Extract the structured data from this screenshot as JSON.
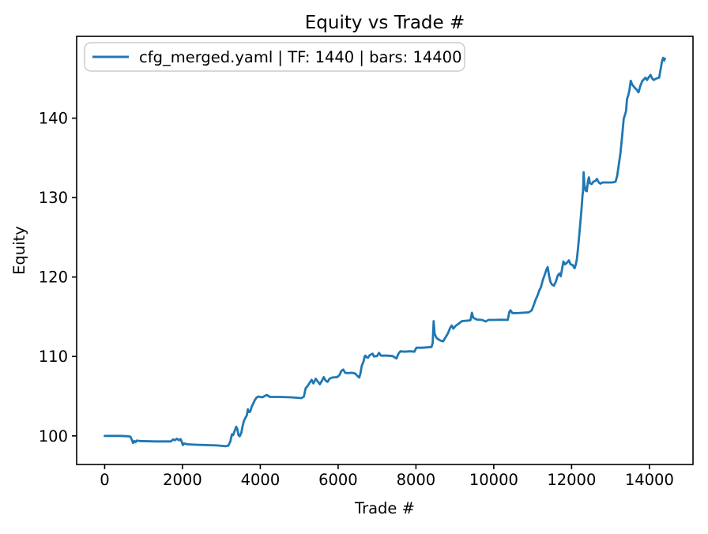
{
  "figure": {
    "background": "#ffffff",
    "text_color": "#000000",
    "spine_color": "#000000",
    "legend_border_color": "#cccccc",
    "legend_background": "#ffffff"
  },
  "chart_data": {
    "type": "line",
    "title": "Equity vs Trade #",
    "xlabel": "Trade #",
    "ylabel": "Equity",
    "grid": false,
    "legend_position": "upper-left",
    "xlim": [
      -720,
      15120
    ],
    "ylim": [
      96.4,
      150.3
    ],
    "x_ticks": [
      0,
      2000,
      4000,
      6000,
      8000,
      10000,
      12000,
      14000
    ],
    "y_ticks": [
      100,
      110,
      120,
      130,
      140
    ],
    "series": [
      {
        "name": "cfg_merged.yaml | TF: 1440 | bars: 14400",
        "color": "#1f77b4",
        "points": [
          [
            0,
            100
          ],
          [
            120,
            100
          ],
          [
            400,
            100
          ],
          [
            620,
            99.95
          ],
          [
            660,
            99.9
          ],
          [
            700,
            99.5
          ],
          [
            730,
            99.1
          ],
          [
            765,
            99.35
          ],
          [
            795,
            99.2
          ],
          [
            825,
            99.4
          ],
          [
            900,
            99.35
          ],
          [
            1300,
            99.3
          ],
          [
            1700,
            99.3
          ],
          [
            1760,
            99.55
          ],
          [
            1805,
            99.45
          ],
          [
            1855,
            99.65
          ],
          [
            1905,
            99.45
          ],
          [
            1950,
            99.6
          ],
          [
            1980,
            99.25
          ],
          [
            2010,
            98.85
          ],
          [
            2040,
            99.05
          ],
          [
            2120,
            98.95
          ],
          [
            2300,
            98.9
          ],
          [
            2600,
            98.85
          ],
          [
            2900,
            98.8
          ],
          [
            3100,
            98.7
          ],
          [
            3180,
            98.78
          ],
          [
            3230,
            99.3
          ],
          [
            3270,
            100.2
          ],
          [
            3300,
            100.1
          ],
          [
            3340,
            100.6
          ],
          [
            3380,
            101.15
          ],
          [
            3410,
            100.85
          ],
          [
            3440,
            100.1
          ],
          [
            3470,
            99.95
          ],
          [
            3510,
            100.35
          ],
          [
            3545,
            101.2
          ],
          [
            3580,
            101.9
          ],
          [
            3620,
            102.3
          ],
          [
            3655,
            102.6
          ],
          [
            3680,
            103.35
          ],
          [
            3705,
            103.0
          ],
          [
            3740,
            103.05
          ],
          [
            3780,
            103.7
          ],
          [
            3820,
            104.1
          ],
          [
            3860,
            104.5
          ],
          [
            3900,
            104.8
          ],
          [
            3950,
            104.95
          ],
          [
            4050,
            104.85
          ],
          [
            4165,
            105.15
          ],
          [
            4250,
            104.9
          ],
          [
            4500,
            104.9
          ],
          [
            4800,
            104.85
          ],
          [
            5060,
            104.75
          ],
          [
            5120,
            104.95
          ],
          [
            5165,
            106.0
          ],
          [
            5220,
            106.3
          ],
          [
            5270,
            106.7
          ],
          [
            5320,
            107.05
          ],
          [
            5365,
            106.6
          ],
          [
            5425,
            107.2
          ],
          [
            5470,
            106.9
          ],
          [
            5530,
            106.5
          ],
          [
            5580,
            106.9
          ],
          [
            5630,
            107.4
          ],
          [
            5680,
            106.95
          ],
          [
            5730,
            106.8
          ],
          [
            5780,
            107.2
          ],
          [
            5850,
            107.35
          ],
          [
            5980,
            107.4
          ],
          [
            6040,
            107.7
          ],
          [
            6080,
            108.15
          ],
          [
            6130,
            108.35
          ],
          [
            6180,
            107.95
          ],
          [
            6250,
            107.9
          ],
          [
            6350,
            107.95
          ],
          [
            6440,
            107.85
          ],
          [
            6505,
            107.5
          ],
          [
            6545,
            107.35
          ],
          [
            6575,
            107.9
          ],
          [
            6610,
            108.85
          ],
          [
            6655,
            109.4
          ],
          [
            6680,
            109.95
          ],
          [
            6700,
            110.1
          ],
          [
            6730,
            109.9
          ],
          [
            6770,
            109.85
          ],
          [
            6810,
            110.15
          ],
          [
            6885,
            110.35
          ],
          [
            6920,
            110.0
          ],
          [
            7000,
            110.05
          ],
          [
            7050,
            110.45
          ],
          [
            7100,
            110.1
          ],
          [
            7250,
            110.1
          ],
          [
            7400,
            110.05
          ],
          [
            7500,
            109.75
          ],
          [
            7545,
            110.3
          ],
          [
            7600,
            110.65
          ],
          [
            7700,
            110.6
          ],
          [
            7850,
            110.65
          ],
          [
            7960,
            110.6
          ],
          [
            8010,
            111.1
          ],
          [
            8150,
            111.1
          ],
          [
            8300,
            111.15
          ],
          [
            8400,
            111.2
          ],
          [
            8430,
            111.7
          ],
          [
            8455,
            114.45
          ],
          [
            8480,
            112.9
          ],
          [
            8520,
            112.4
          ],
          [
            8560,
            112.2
          ],
          [
            8630,
            112.0
          ],
          [
            8700,
            111.9
          ],
          [
            8760,
            112.4
          ],
          [
            8820,
            112.9
          ],
          [
            8880,
            113.6
          ],
          [
            8920,
            113.9
          ],
          [
            8960,
            113.5
          ],
          [
            9020,
            113.85
          ],
          [
            9090,
            114.1
          ],
          [
            9185,
            114.45
          ],
          [
            9300,
            114.5
          ],
          [
            9400,
            114.55
          ],
          [
            9440,
            115.5
          ],
          [
            9470,
            114.9
          ],
          [
            9560,
            114.65
          ],
          [
            9700,
            114.6
          ],
          [
            9795,
            114.4
          ],
          [
            9860,
            114.6
          ],
          [
            10000,
            114.6
          ],
          [
            10200,
            114.62
          ],
          [
            10360,
            114.6
          ],
          [
            10400,
            115.6
          ],
          [
            10430,
            115.8
          ],
          [
            10480,
            115.45
          ],
          [
            10600,
            115.45
          ],
          [
            10750,
            115.5
          ],
          [
            10900,
            115.55
          ],
          [
            10975,
            115.8
          ],
          [
            11030,
            116.5
          ],
          [
            11080,
            117.2
          ],
          [
            11120,
            117.6
          ],
          [
            11170,
            118.3
          ],
          [
            11210,
            118.7
          ],
          [
            11260,
            119.6
          ],
          [
            11310,
            120.3
          ],
          [
            11350,
            120.9
          ],
          [
            11385,
            121.25
          ],
          [
            11420,
            120.2
          ],
          [
            11455,
            119.4
          ],
          [
            11495,
            119.05
          ],
          [
            11545,
            118.9
          ],
          [
            11595,
            119.4
          ],
          [
            11645,
            120.2
          ],
          [
            11685,
            120.45
          ],
          [
            11720,
            120.1
          ],
          [
            11755,
            121.0
          ],
          [
            11790,
            121.95
          ],
          [
            11830,
            121.6
          ],
          [
            11880,
            121.8
          ],
          [
            11930,
            122.1
          ],
          [
            11975,
            121.6
          ],
          [
            12030,
            121.5
          ],
          [
            12075,
            121.1
          ],
          [
            12105,
            121.5
          ],
          [
            12135,
            122.2
          ],
          [
            12165,
            123.6
          ],
          [
            12195,
            125.2
          ],
          [
            12225,
            126.8
          ],
          [
            12255,
            128.5
          ],
          [
            12280,
            130.3
          ],
          [
            12295,
            130.8
          ],
          [
            12310,
            133.2
          ],
          [
            12330,
            131.6
          ],
          [
            12360,
            130.9
          ],
          [
            12390,
            130.8
          ],
          [
            12420,
            132.0
          ],
          [
            12445,
            132.55
          ],
          [
            12470,
            131.8
          ],
          [
            12515,
            131.7
          ],
          [
            12560,
            132.0
          ],
          [
            12610,
            132.1
          ],
          [
            12650,
            132.35
          ],
          [
            12700,
            131.9
          ],
          [
            12740,
            131.75
          ],
          [
            12795,
            131.9
          ],
          [
            12900,
            131.9
          ],
          [
            13050,
            131.9
          ],
          [
            13130,
            132.0
          ],
          [
            13170,
            132.7
          ],
          [
            13210,
            134.0
          ],
          [
            13255,
            135.6
          ],
          [
            13300,
            137.8
          ],
          [
            13340,
            139.9
          ],
          [
            13370,
            140.4
          ],
          [
            13400,
            140.9
          ],
          [
            13425,
            142.4
          ],
          [
            13455,
            142.85
          ],
          [
            13485,
            143.5
          ],
          [
            13520,
            144.7
          ],
          [
            13560,
            144.2
          ],
          [
            13620,
            143.85
          ],
          [
            13670,
            143.6
          ],
          [
            13720,
            143.25
          ],
          [
            13770,
            144.1
          ],
          [
            13820,
            144.7
          ],
          [
            13860,
            144.9
          ],
          [
            13900,
            145.1
          ],
          [
            13940,
            144.8
          ],
          [
            13990,
            145.2
          ],
          [
            14030,
            145.45
          ],
          [
            14070,
            145.0
          ],
          [
            14110,
            144.8
          ],
          [
            14180,
            145.0
          ],
          [
            14250,
            145.1
          ],
          [
            14290,
            146.2
          ],
          [
            14325,
            147.2
          ],
          [
            14355,
            147.6
          ],
          [
            14380,
            147.25
          ],
          [
            14400,
            147.5
          ]
        ]
      }
    ]
  }
}
